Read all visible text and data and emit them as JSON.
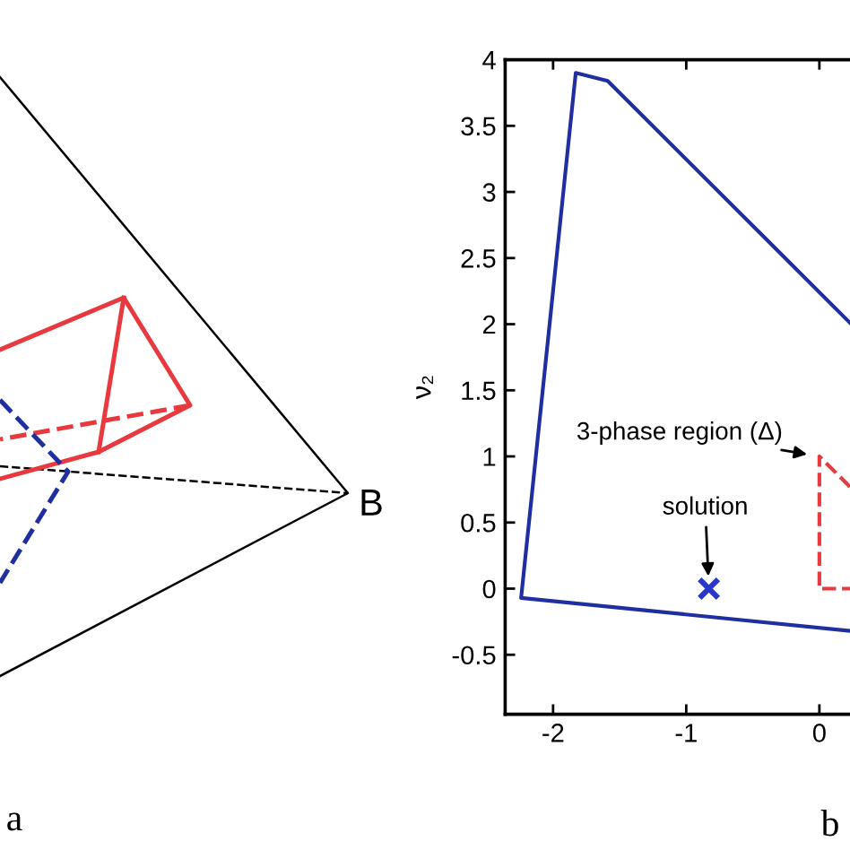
{
  "chart_data": [
    {
      "type": "other",
      "annotations": [
        "B",
        "a"
      ]
    },
    {
      "type": "line",
      "ylabel": "ν₂",
      "xlim": [
        -2.36,
        0.23
      ],
      "ylim": [
        -0.95,
        4
      ],
      "xticks": [
        -2,
        -1,
        0
      ],
      "yticks": [
        -0.5,
        0,
        0.5,
        1,
        1.5,
        2,
        2.5,
        3,
        3.5,
        4
      ],
      "series": [
        {
          "color": "#1f2fa0",
          "x": [
            0.23,
            -1.59,
            -1.83,
            -2.24,
            0.23
          ],
          "values": [
            2.01,
            3.84,
            3.9,
            -0.07,
            -0.32
          ]
        },
        {
          "color": "#e8393f",
          "line_style": "dashed",
          "x": [
            0.23,
            0,
            0,
            0.23
          ],
          "values": [
            0.77,
            1,
            0,
            0
          ]
        },
        {
          "type": "scatter",
          "marker": "cross",
          "color": "#2838c8",
          "x": [
            -0.83
          ],
          "values": [
            0
          ]
        }
      ],
      "annotations": [
        {
          "text": "solution",
          "x": -0.83,
          "y": 0
        },
        {
          "text": "3-phase region (Δ)",
          "x": 0,
          "y": 1
        },
        "b"
      ]
    }
  ]
}
